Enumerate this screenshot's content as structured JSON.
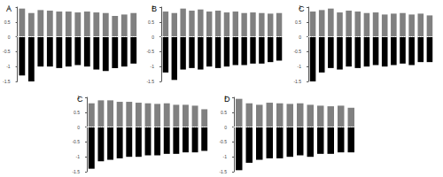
{
  "chart_data": [
    {
      "type": "bar",
      "title": "A",
      "categories": [
        null,
        null,
        null,
        null,
        null,
        null,
        null,
        null,
        null,
        null,
        null,
        null,
        null
      ],
      "series": [
        {
          "color": "#808080",
          "values": [
            0.95,
            0.8,
            0.9,
            0.88,
            0.85,
            0.85,
            0.82,
            0.85,
            0.82,
            0.8,
            0.7,
            0.75,
            0.8
          ]
        },
        {
          "color": "#000000",
          "values": [
            -1.3,
            -1.5,
            -1.0,
            -1.0,
            -1.05,
            -1.0,
            -0.95,
            -1.0,
            -1.1,
            -1.15,
            -1.05,
            -1.0,
            -0.9
          ]
        }
      ],
      "stacked": true,
      "ylim": [
        -1.5,
        1
      ],
      "yticks": [
        -1.5,
        -1,
        -0.5,
        0,
        0.5,
        1
      ],
      "tick_labels": "y",
      "grid": false
    },
    {
      "type": "bar",
      "title": "B",
      "categories": [
        null,
        null,
        null,
        null,
        null,
        null,
        null,
        null,
        null,
        null,
        null,
        null,
        null,
        null
      ],
      "series": [
        {
          "color": "#808080",
          "values": [
            0.85,
            0.8,
            0.95,
            0.88,
            0.92,
            0.85,
            0.88,
            0.82,
            0.85,
            0.8,
            0.82,
            0.8,
            0.78,
            0.8
          ]
        },
        {
          "color": "#000000",
          "values": [
            -1.2,
            -1.45,
            -1.1,
            -1.05,
            -1.1,
            -1.0,
            -1.05,
            -1.0,
            -0.95,
            -0.95,
            -0.9,
            -0.9,
            -0.85,
            -0.8
          ]
        }
      ],
      "stacked": true,
      "ylim": [
        -1.5,
        1
      ],
      "yticks": [
        -1.5,
        -1,
        -0.5,
        0,
        0.5,
        1
      ],
      "tick_labels": "y",
      "grid": false
    },
    {
      "type": "bar",
      "title": "C",
      "categories": [
        null,
        null,
        null,
        null,
        null,
        null,
        null,
        null,
        null,
        null,
        null,
        null,
        null,
        null
      ],
      "series": [
        {
          "color": "#808080",
          "values": [
            0.85,
            0.9,
            0.95,
            0.82,
            0.88,
            0.85,
            0.8,
            0.82,
            0.75,
            0.78,
            0.8,
            0.75,
            0.78,
            0.72
          ]
        },
        {
          "color": "#000000",
          "values": [
            -1.5,
            -1.2,
            -1.05,
            -1.1,
            -1.0,
            -1.05,
            -1.0,
            -0.95,
            -1.0,
            -0.95,
            -0.9,
            -0.95,
            -0.85,
            -0.85
          ]
        }
      ],
      "stacked": true,
      "ylim": [
        -1.5,
        1
      ],
      "yticks": [
        -1.5,
        -1,
        -0.5,
        0,
        0.5,
        1
      ],
      "tick_labels": "y",
      "grid": false
    },
    {
      "type": "bar",
      "title": "C",
      "categories": [
        null,
        null,
        null,
        null,
        null,
        null,
        null,
        null,
        null,
        null,
        null,
        null,
        null
      ],
      "series": [
        {
          "color": "#808080",
          "values": [
            0.8,
            0.9,
            0.9,
            0.85,
            0.85,
            0.82,
            0.8,
            0.78,
            0.8,
            0.75,
            0.75,
            0.72,
            0.6
          ]
        },
        {
          "color": "#000000",
          "values": [
            -1.4,
            -1.15,
            -1.1,
            -1.05,
            -1.0,
            -1.0,
            -0.95,
            -0.95,
            -0.9,
            -0.9,
            -0.85,
            -0.85,
            -0.8
          ]
        }
      ],
      "stacked": true,
      "ylim": [
        -1.5,
        1
      ],
      "yticks": [
        -1.5,
        -1,
        -0.5,
        0,
        0.5,
        1
      ],
      "tick_labels": "y",
      "grid": false
    },
    {
      "type": "bar",
      "title": "D",
      "categories": [
        null,
        null,
        null,
        null,
        null,
        null,
        null,
        null,
        null,
        null,
        null,
        null
      ],
      "series": [
        {
          "color": "#808080",
          "values": [
            0.95,
            0.8,
            0.75,
            0.82,
            0.8,
            0.78,
            0.8,
            0.75,
            0.72,
            0.7,
            0.72,
            0.65
          ]
        },
        {
          "color": "#000000",
          "values": [
            -1.45,
            -1.2,
            -1.1,
            -1.05,
            -1.05,
            -1.0,
            -0.95,
            -1.0,
            -0.9,
            -0.9,
            -0.85,
            -0.85
          ]
        }
      ],
      "stacked": true,
      "ylim": [
        -1.5,
        1
      ],
      "yticks": [
        -1.5,
        -1,
        -0.5,
        0,
        0.5,
        1
      ],
      "tick_labels": "y",
      "grid": false
    }
  ]
}
